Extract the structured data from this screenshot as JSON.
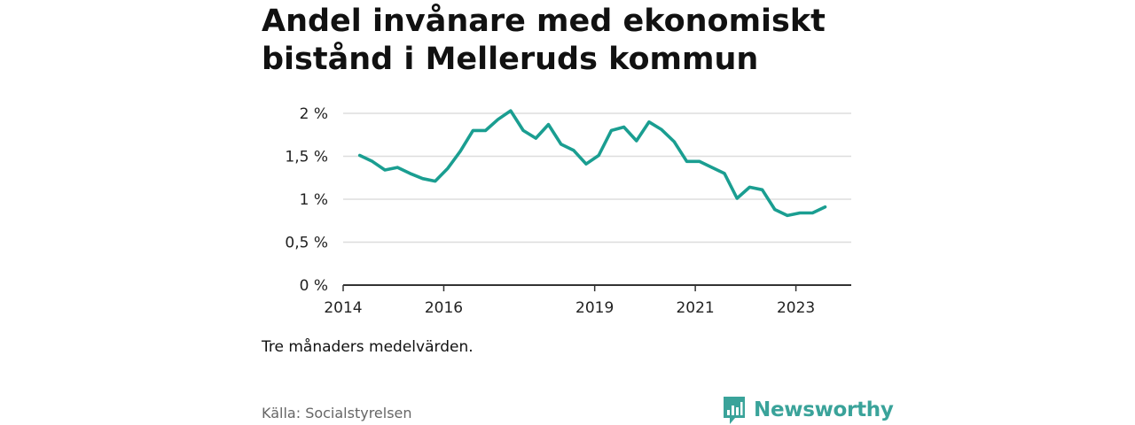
{
  "title": "Andel invånare med ekonomiskt bistånd i Melleruds kommun",
  "note": "Tre månaders medelvärden.",
  "source": "Källa: Socialstyrelsen",
  "brand": "Newsworthy",
  "colors": {
    "line": "#1a9e91",
    "grid": "#dddddd",
    "axis": "#333333",
    "brand": "#3aa39a"
  },
  "chart_data": {
    "type": "line",
    "title": "Andel invånare med ekonomiskt bistånd i Melleruds kommun",
    "xlabel": "",
    "ylabel": "",
    "x_tick_labels": [
      "2014",
      "2016",
      "2019",
      "2021",
      "2023"
    ],
    "x_ticks": [
      2014,
      2016,
      2019,
      2021,
      2023
    ],
    "y_tick_labels": [
      "0 %",
      "0,5 %",
      "1 %",
      "1,5 %",
      "2 %"
    ],
    "y_ticks": [
      0,
      0.5,
      1,
      1.5,
      2
    ],
    "xlim": [
      2014,
      2024.1
    ],
    "ylim": [
      0,
      2
    ],
    "grid": true,
    "series": [
      {
        "name": "",
        "x": [
          2014.33,
          2014.58,
          2014.83,
          2015.08,
          2015.33,
          2015.58,
          2015.83,
          2016.08,
          2016.33,
          2016.58,
          2016.83,
          2017.08,
          2017.33,
          2017.58,
          2017.83,
          2018.08,
          2018.33,
          2018.58,
          2018.83,
          2019.08,
          2019.33,
          2019.58,
          2019.83,
          2020.08,
          2020.33,
          2020.58,
          2020.83,
          2021.08,
          2021.33,
          2021.58,
          2021.83,
          2022.08,
          2022.33,
          2022.58,
          2022.83,
          2023.08,
          2023.33,
          2023.58
        ],
        "y": [
          1.51,
          1.44,
          1.34,
          1.37,
          1.3,
          1.24,
          1.21,
          1.36,
          1.56,
          1.8,
          1.8,
          1.93,
          2.03,
          1.8,
          1.71,
          1.87,
          1.64,
          1.57,
          1.41,
          1.51,
          1.8,
          1.84,
          1.68,
          1.9,
          1.81,
          1.67,
          1.44,
          1.44,
          1.37,
          1.3,
          1.01,
          1.14,
          1.11,
          0.88,
          0.81,
          0.84,
          0.84,
          0.91
        ]
      }
    ]
  }
}
